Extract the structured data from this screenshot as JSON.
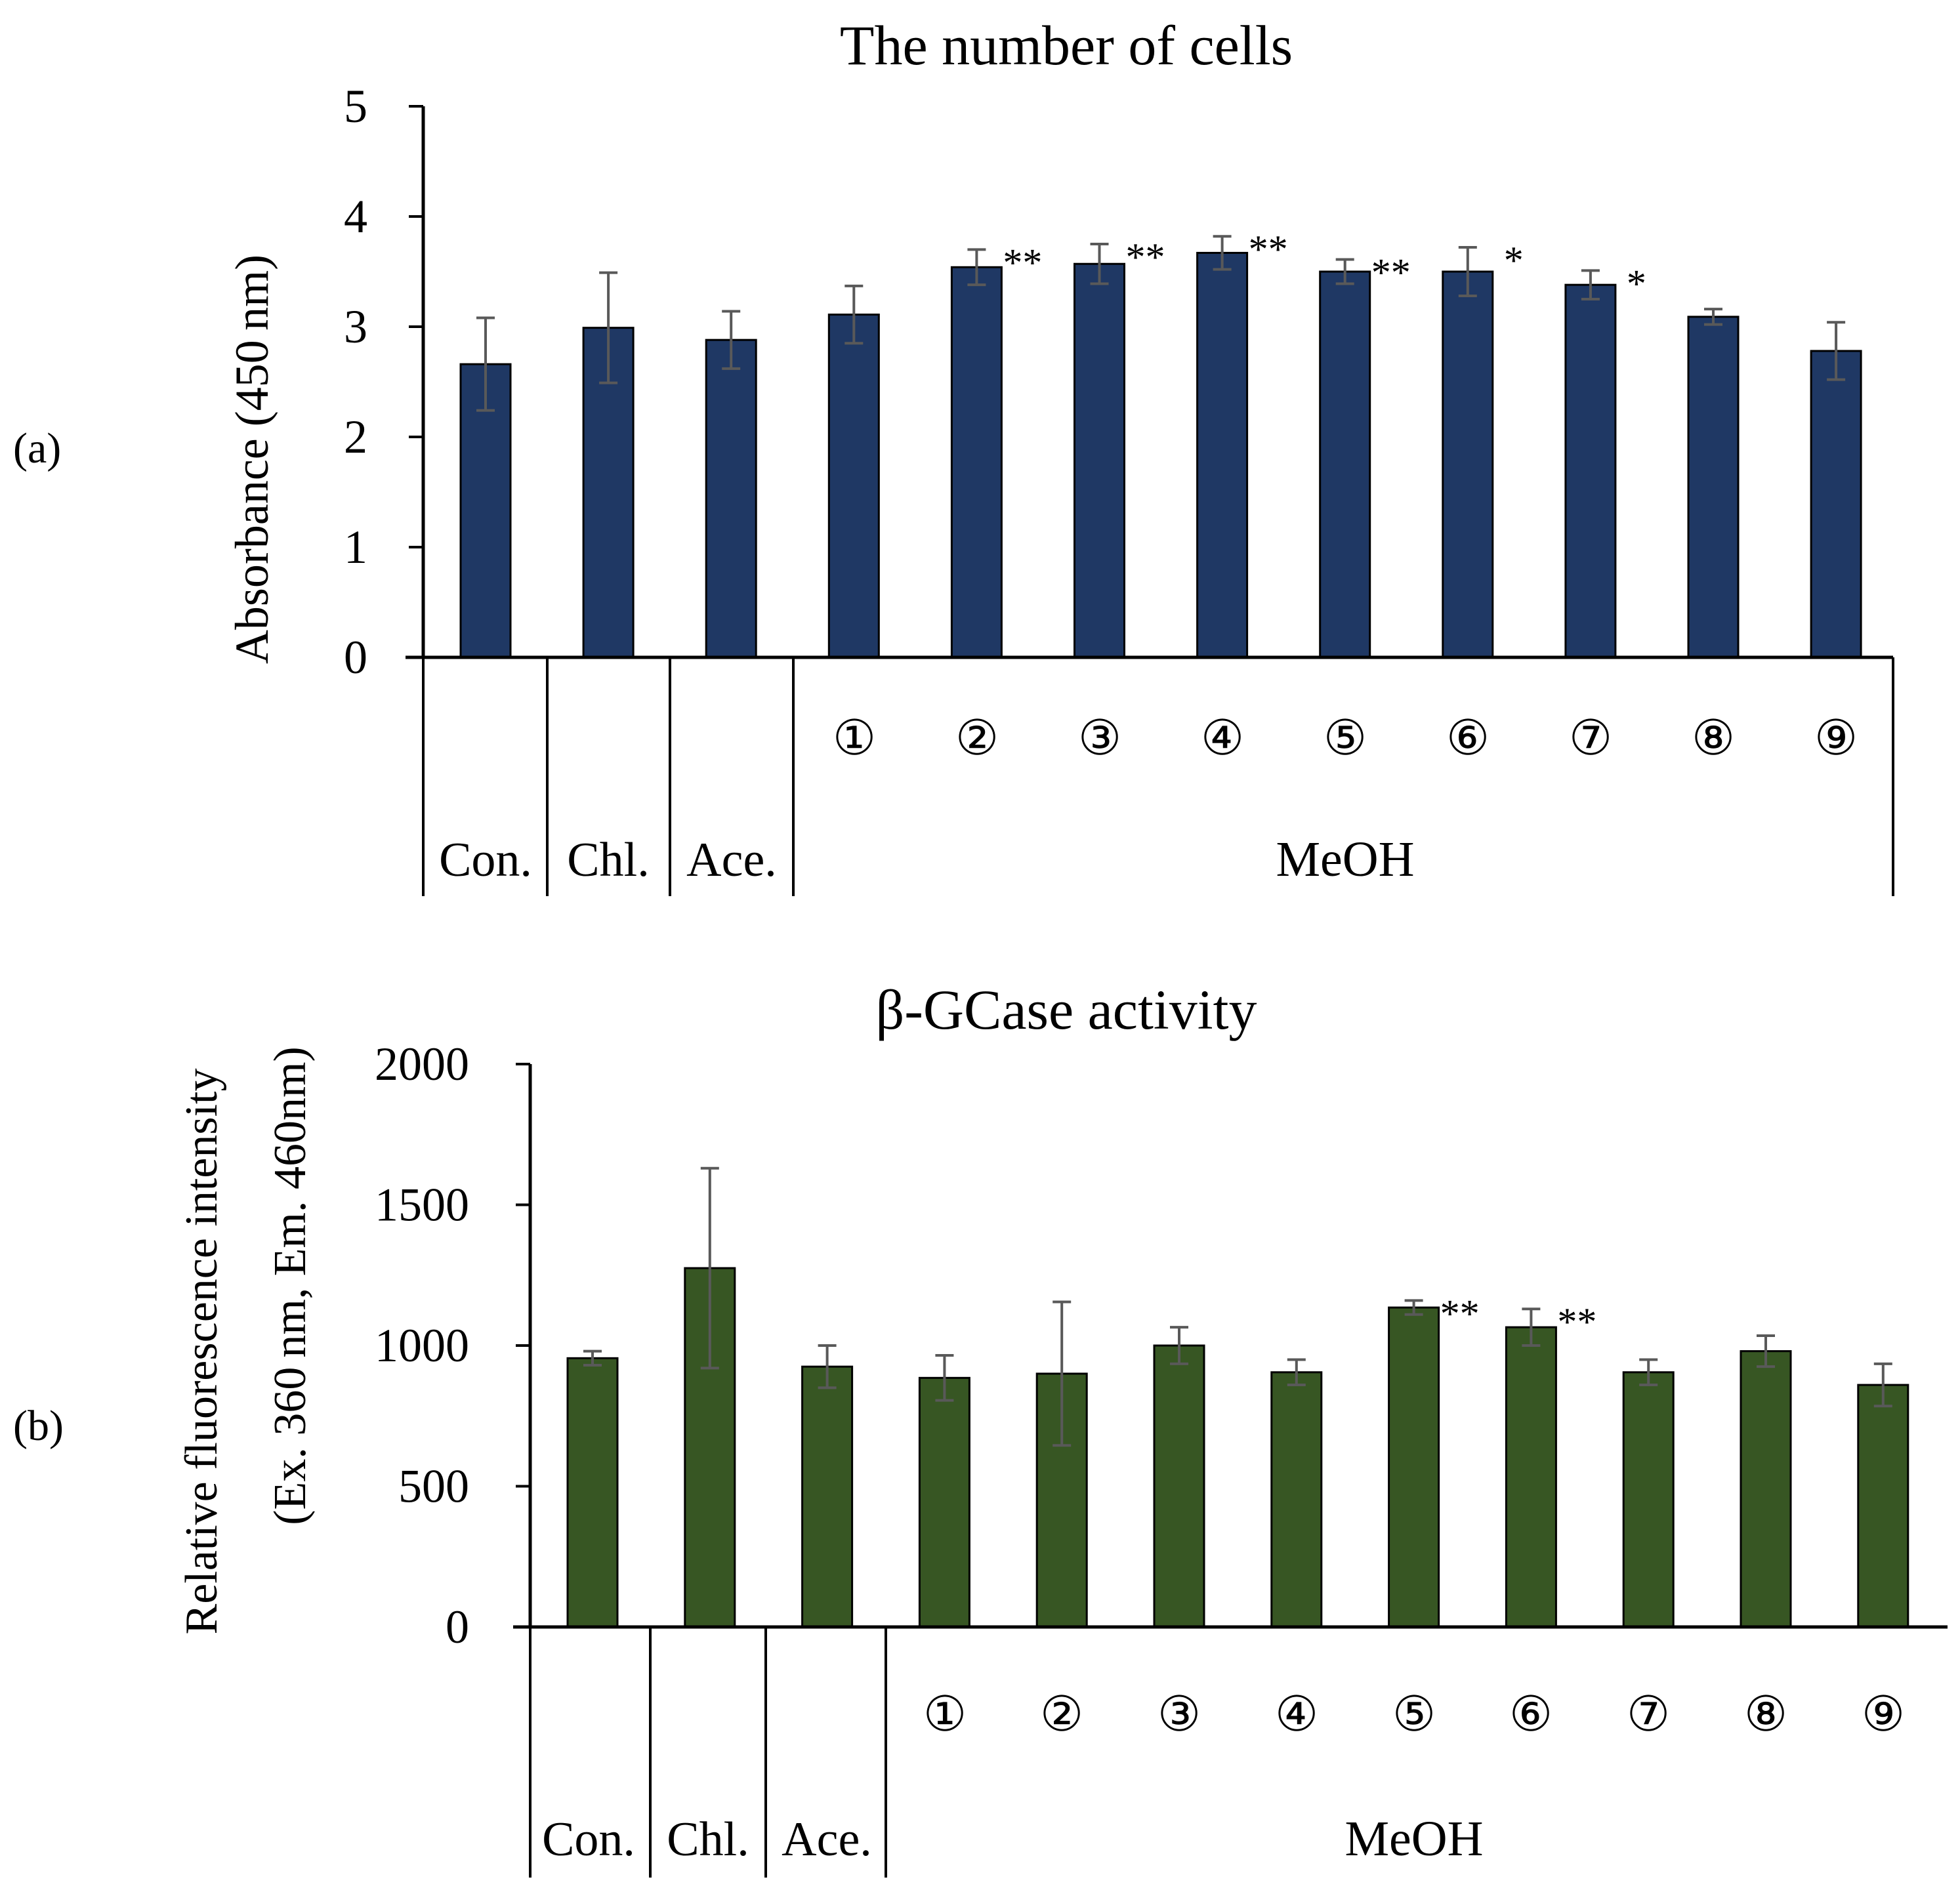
{
  "panels": [
    {
      "label": "(a)",
      "chart_data": {
        "type": "bar",
        "title": "The number of cells",
        "ylabel": "Absorbance (450 nm)",
        "xlabel": "",
        "ylim": [
          0,
          5
        ],
        "yticks": [
          0,
          1,
          2,
          3,
          4,
          5
        ],
        "ytick_labels": [
          "0",
          "1",
          "2",
          "3",
          "4",
          "5"
        ],
        "categories": [
          "Con.",
          "Chl.",
          "Ace.",
          "①",
          "②",
          "③",
          "④",
          "⑤",
          "⑥",
          "⑦",
          "⑧",
          "⑨"
        ],
        "values": [
          2.66,
          2.99,
          2.88,
          3.11,
          3.54,
          3.57,
          3.67,
          3.5,
          3.5,
          3.38,
          3.09,
          2.78
        ],
        "errors": [
          0.42,
          0.5,
          0.26,
          0.26,
          0.16,
          0.18,
          0.15,
          0.11,
          0.22,
          0.13,
          0.07,
          0.26
        ],
        "significance": [
          "",
          "",
          "",
          "",
          "**",
          "**",
          "**",
          "**",
          "*",
          "*",
          "",
          ""
        ],
        "group_label": "MeOH",
        "bar_color": "#1f3864",
        "error_color": "#595959"
      }
    },
    {
      "label": "(b)",
      "chart_data": {
        "type": "bar",
        "title": "β-GCase activity",
        "ylabel": "Relative fluorescence intensity",
        "ylabel2": "(Ex. 360 nm, Em. 460nm)",
        "xlabel": "",
        "ylim": [
          0,
          2000
        ],
        "yticks": [
          0,
          500,
          1000,
          1500,
          2000
        ],
        "ytick_labels": [
          "0",
          "500",
          "1000",
          "1500",
          "2000"
        ],
        "categories": [
          "Con.",
          "Chl.",
          "Ace.",
          "①",
          "②",
          "③",
          "④",
          "⑤",
          "⑥",
          "⑦",
          "⑧",
          "⑨"
        ],
        "values": [
          955,
          1275,
          925,
          885,
          900,
          1000,
          905,
          1135,
          1065,
          905,
          980,
          860
        ],
        "errors": [
          25,
          355,
          75,
          80,
          255,
          65,
          45,
          25,
          65,
          45,
          55,
          75
        ],
        "significance": [
          "",
          "",
          "",
          "",
          "",
          "",
          "",
          "**",
          "**",
          "",
          "",
          ""
        ],
        "group_label": "MeOH",
        "bar_color": "#375623",
        "error_color": "#595959"
      }
    }
  ]
}
